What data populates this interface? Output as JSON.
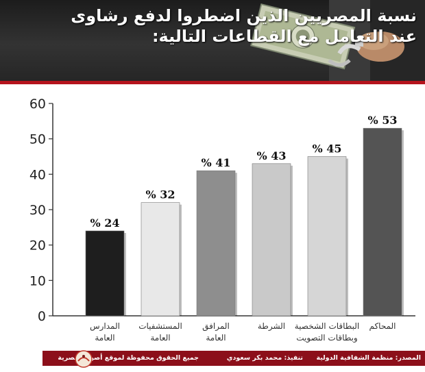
{
  "header": {
    "title_line1": "نسبة المصريين الذين اضطروا لدفع رشاوى",
    "title_line2": "عند التعامل مع القطاعات التالية:"
  },
  "chart_data": {
    "type": "bar",
    "title": "نسبة المصريين الذين اضطروا لدفع رشاوى عند التعامل مع القطاعات التالية:",
    "categories": [
      [
        "المدارس",
        "العامة"
      ],
      [
        "المستشفيات",
        "العامة"
      ],
      [
        "المرافق",
        "العامة"
      ],
      [
        "الشرطة"
      ],
      [
        "البطاقات الشخصية",
        "وبطاقات التصويت"
      ],
      [
        "المحاكم"
      ]
    ],
    "values": [
      24,
      32,
      41,
      43,
      45,
      53
    ],
    "data_labels": [
      "% 24",
      "% 32",
      "% 41",
      "% 43",
      "% 45",
      "% 53"
    ],
    "bar_colors": [
      "#1e1e1e",
      "#e8e8e8",
      "#8e8e8e",
      "#c9c9c9",
      "#d6d6d6",
      "#545454"
    ],
    "ylim": [
      0,
      60
    ],
    "yticks": [
      0,
      10,
      20,
      30,
      40,
      50,
      60
    ],
    "grid": false
  },
  "footer": {
    "source": "المصدر: منظمة الشفافية الدولية",
    "execution": "تنفيذ: محمد بكر سعودي",
    "rights": "جميع الحقوق محفوظة لموقع أصوات مصرية"
  },
  "colors": {
    "accent": "#b5141d",
    "footer_bg": "#8c0f1a",
    "header_bg": "#2a2a2a"
  }
}
